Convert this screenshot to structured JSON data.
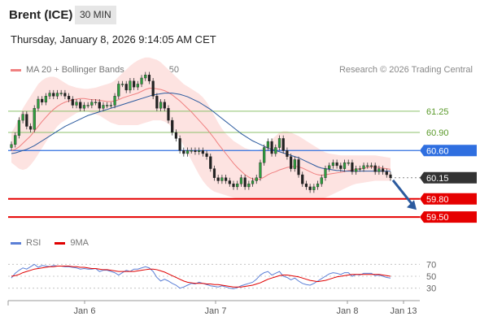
{
  "header": {
    "instrument": "Brent (ICE)",
    "timeframe": "30 MIN",
    "datetime": "Thursday, January 8, 2026 9:14:05 AM CET"
  },
  "legend": {
    "bollinger_label": "MA 20 + Bollinger Bands",
    "bollinger_color": "#f08080",
    "ma50_label": "MA 50",
    "ma50_color": "#2b5a9e",
    "rsi_label": "RSI",
    "rsi_color": "#5b7fd6",
    "rsi9_label": "9MA",
    "rsi9_color": "#e00000"
  },
  "credit": "Research © 2026 Trading Central",
  "chart_data": {
    "type": "candlestick",
    "x_ticks": [
      "Jan 6",
      "Jan 7",
      "Jan 8",
      "Jan 13"
    ],
    "ylim": [
      59.3,
      61.8
    ],
    "levels": [
      {
        "label": "61.25",
        "value": 61.25,
        "kind": "resistance",
        "color": "#8dc26b"
      },
      {
        "label": "60.90",
        "value": 60.9,
        "kind": "resistance",
        "color": "#8dc26b"
      },
      {
        "label": "60.60",
        "value": 60.6,
        "kind": "pivot",
        "color": "#2f6fe0"
      },
      {
        "label": "60.15",
        "value": 60.15,
        "kind": "last",
        "color": "#333333"
      },
      {
        "label": "59.80",
        "value": 59.8,
        "kind": "support",
        "color": "#e60000"
      },
      {
        "label": "59.50",
        "value": 59.5,
        "kind": "support",
        "color": "#e60000"
      }
    ],
    "close": [
      60.7,
      60.85,
      61.1,
      61.2,
      61.0,
      60.95,
      61.3,
      61.45,
      61.4,
      61.5,
      61.55,
      61.5,
      61.55,
      61.55,
      61.5,
      61.45,
      61.35,
      61.4,
      61.3,
      61.35,
      61.35,
      61.4,
      61.4,
      61.3,
      61.35,
      61.35,
      61.35,
      61.5,
      61.7,
      61.7,
      61.6,
      61.75,
      61.65,
      61.7,
      61.8,
      61.85,
      61.75,
      61.5,
      61.3,
      61.4,
      61.3,
      61.1,
      60.9,
      60.8,
      60.6,
      60.55,
      60.6,
      60.6,
      60.58,
      60.6,
      60.55,
      60.5,
      60.3,
      60.15,
      60.1,
      60.15,
      60.1,
      60.05,
      60.0,
      60.05,
      60.15,
      60.0,
      60.05,
      60.1,
      60.15,
      60.4,
      60.65,
      60.75,
      60.55,
      60.65,
      60.8,
      60.6,
      60.5,
      60.3,
      60.45,
      60.2,
      60.05,
      60.0,
      59.95,
      60.0,
      60.05,
      60.15,
      60.3,
      60.35,
      60.4,
      60.35,
      60.3,
      60.4,
      60.4,
      60.25,
      60.3,
      60.3,
      60.35,
      60.35,
      60.35,
      60.25,
      60.3,
      60.25,
      60.2,
      60.15
    ],
    "open": [
      60.65,
      60.7,
      60.85,
      61.1,
      61.2,
      61.0,
      60.95,
      61.3,
      61.45,
      61.4,
      61.5,
      61.55,
      61.5,
      61.55,
      61.55,
      61.5,
      61.45,
      61.35,
      61.4,
      61.3,
      61.35,
      61.35,
      61.4,
      61.4,
      61.3,
      61.35,
      61.35,
      61.35,
      61.5,
      61.7,
      61.7,
      61.6,
      61.75,
      61.65,
      61.7,
      61.8,
      61.85,
      61.75,
      61.5,
      61.3,
      61.4,
      61.3,
      61.1,
      60.9,
      60.8,
      60.6,
      60.55,
      60.6,
      60.6,
      60.58,
      60.6,
      60.55,
      60.5,
      60.3,
      60.15,
      60.1,
      60.15,
      60.1,
      60.05,
      60.0,
      60.05,
      60.15,
      60.0,
      60.05,
      60.1,
      60.15,
      60.4,
      60.65,
      60.75,
      60.55,
      60.65,
      60.8,
      60.6,
      60.5,
      60.3,
      60.45,
      60.2,
      60.05,
      60.0,
      59.95,
      60.0,
      60.05,
      60.15,
      60.3,
      60.35,
      60.4,
      60.35,
      60.3,
      60.4,
      60.4,
      60.25,
      60.3,
      60.3,
      60.35,
      60.35,
      60.35,
      60.25,
      60.3,
      60.25,
      60.2
    ],
    "ma20": [
      60.6,
      60.62,
      60.66,
      60.72,
      60.78,
      60.84,
      60.92,
      61.0,
      61.08,
      61.15,
      61.22,
      61.28,
      61.33,
      61.37,
      61.4,
      61.42,
      61.44,
      61.45,
      61.46,
      61.46,
      61.45,
      61.44,
      61.44,
      61.43,
      61.42,
      61.41,
      61.41,
      61.42,
      61.44,
      61.47,
      61.49,
      61.51,
      61.53,
      61.55,
      61.58,
      61.61,
      61.63,
      61.63,
      61.62,
      61.61,
      61.59,
      61.56,
      61.52,
      61.47,
      61.42,
      61.36,
      61.3,
      61.24,
      61.17,
      61.1,
      61.03,
      60.96,
      60.88,
      60.8,
      60.71,
      60.63,
      60.55,
      60.47,
      60.39,
      60.32,
      60.26,
      60.2,
      60.16,
      60.13,
      60.12,
      60.13,
      60.16,
      60.2,
      60.23,
      60.25,
      60.28,
      60.3,
      60.32,
      60.33,
      60.34,
      60.33,
      60.31,
      60.28,
      60.25,
      60.22,
      60.2,
      60.19,
      60.2,
      60.21,
      60.22,
      60.23,
      60.24,
      60.25,
      60.27,
      60.28,
      60.29,
      60.3,
      60.31,
      60.32,
      60.33,
      60.33,
      60.32,
      60.31,
      60.3,
      60.29
    ],
    "bb_upper": [
      60.9,
      61.0,
      61.15,
      61.3,
      61.4,
      61.5,
      61.6,
      61.7,
      61.76,
      61.8,
      61.82,
      61.82,
      61.8,
      61.76,
      61.72,
      61.68,
      61.66,
      61.64,
      61.63,
      61.62,
      61.62,
      61.63,
      61.64,
      61.66,
      61.68,
      61.7,
      61.72,
      61.76,
      61.82,
      61.88,
      61.94,
      62.0,
      62.05,
      62.09,
      62.12,
      62.14,
      62.14,
      62.12,
      62.1,
      62.06,
      62.0,
      61.94,
      61.88,
      61.82,
      61.76,
      61.7,
      61.66,
      61.62,
      61.58,
      61.54,
      61.48,
      61.4,
      61.3,
      61.18,
      61.06,
      60.96,
      60.88,
      60.82,
      60.76,
      60.72,
      60.68,
      60.64,
      60.62,
      60.6,
      60.6,
      60.62,
      60.66,
      60.72,
      60.78,
      60.84,
      60.9,
      60.92,
      60.92,
      60.9,
      60.87,
      60.84,
      60.8,
      60.76,
      60.72,
      60.68,
      60.64,
      60.6,
      60.57,
      60.55,
      60.54,
      60.53,
      60.52,
      60.52,
      60.52,
      60.52,
      60.52,
      60.52,
      60.52,
      60.52,
      60.52,
      60.52,
      60.51,
      60.5,
      60.49,
      60.48
    ],
    "bb_lower": [
      60.4,
      60.35,
      60.3,
      60.28,
      60.3,
      60.36,
      60.44,
      60.54,
      60.64,
      60.74,
      60.84,
      60.92,
      61.0,
      61.06,
      61.1,
      61.14,
      61.18,
      61.22,
      61.24,
      61.25,
      61.24,
      61.22,
      61.2,
      61.18,
      61.14,
      61.1,
      61.06,
      61.04,
      61.02,
      61.02,
      61.02,
      61.02,
      61.02,
      61.02,
      61.04,
      61.06,
      61.08,
      61.1,
      61.1,
      61.1,
      61.08,
      61.04,
      60.98,
      60.9,
      60.8,
      60.68,
      60.56,
      60.44,
      60.32,
      60.2,
      60.1,
      60.02,
      59.96,
      59.92,
      59.9,
      59.88,
      59.86,
      59.84,
      59.82,
      59.8,
      59.8,
      59.8,
      59.8,
      59.8,
      59.8,
      59.8,
      59.8,
      59.8,
      59.8,
      59.8,
      59.8,
      59.8,
      59.8,
      59.8,
      59.8,
      59.8,
      59.8,
      59.8,
      59.8,
      59.8,
      59.8,
      59.8,
      59.82,
      59.85,
      59.88,
      59.91,
      59.94,
      59.97,
      60.0,
      60.03,
      60.05,
      60.06,
      60.07,
      60.08,
      60.09,
      60.1,
      60.1,
      60.1,
      60.1,
      60.1
    ],
    "ma50": [
      60.55,
      60.56,
      60.58,
      60.6,
      60.62,
      60.65,
      60.68,
      60.72,
      60.76,
      60.8,
      60.84,
      60.88,
      60.92,
      60.96,
      61.0,
      61.03,
      61.06,
      61.09,
      61.12,
      61.15,
      61.18,
      61.2,
      61.22,
      61.24,
      61.26,
      61.28,
      61.3,
      61.32,
      61.34,
      61.36,
      61.38,
      61.4,
      61.42,
      61.44,
      61.46,
      61.48,
      61.5,
      61.52,
      61.53,
      61.54,
      61.55,
      61.55,
      61.55,
      61.54,
      61.53,
      61.51,
      61.49,
      61.46,
      61.43,
      61.4,
      61.36,
      61.32,
      61.28,
      61.23,
      61.18,
      61.13,
      61.08,
      61.03,
      60.98,
      60.93,
      60.88,
      60.84,
      60.8,
      60.76,
      60.73,
      60.7,
      60.67,
      60.64,
      60.62,
      60.6,
      60.58,
      60.56,
      60.54,
      60.52,
      60.5,
      60.48,
      60.45,
      60.42,
      60.39,
      60.36,
      60.33,
      60.31,
      60.3,
      60.29,
      60.28,
      60.27,
      60.27,
      60.26,
      60.26,
      60.26,
      60.26,
      60.26,
      60.26,
      60.26,
      60.26,
      60.26,
      60.26,
      60.26,
      60.26,
      60.26
    ],
    "rsi_ticks": [
      70,
      50,
      30
    ],
    "rsi_ylim": [
      20,
      80
    ],
    "rsi": [
      47,
      55,
      60,
      64,
      62,
      66,
      70,
      65,
      68,
      67,
      66,
      68,
      67,
      67,
      66,
      66,
      65,
      64,
      62,
      63,
      62,
      62,
      63,
      58,
      60,
      60,
      58,
      56,
      52,
      56,
      60,
      58,
      62,
      62,
      64,
      66,
      64,
      58,
      48,
      42,
      45,
      42,
      38,
      35,
      30,
      32,
      35,
      38,
      37,
      40,
      38,
      36,
      34,
      33,
      32,
      34,
      32,
      30,
      29,
      31,
      34,
      36,
      38,
      40,
      45,
      52,
      56,
      58,
      52,
      55,
      58,
      50,
      48,
      44,
      47,
      42,
      38,
      36,
      35,
      38,
      42,
      46,
      50,
      54,
      56,
      55,
      53,
      56,
      56,
      50,
      53,
      52,
      55,
      55,
      55,
      51,
      52,
      50,
      48,
      47
    ],
    "rsi_ma": [
      50,
      51,
      53,
      56,
      58,
      60,
      62,
      63,
      64,
      65,
      66,
      66,
      67,
      67,
      67,
      67,
      66,
      66,
      65,
      65,
      64,
      63,
      63,
      62,
      61,
      61,
      60,
      59,
      58,
      58,
      58,
      58,
      58,
      59,
      60,
      61,
      62,
      62,
      61,
      59,
      57,
      54,
      51,
      48,
      45,
      42,
      40,
      39,
      38,
      38,
      38,
      37,
      37,
      36,
      36,
      35,
      34,
      33,
      32,
      32,
      32,
      33,
      34,
      35,
      37,
      39,
      42,
      45,
      47,
      49,
      51,
      52,
      52,
      51,
      50,
      49,
      47,
      45,
      43,
      42,
      41,
      42,
      43,
      45,
      47,
      49,
      50,
      51,
      52,
      53,
      53,
      53,
      53,
      53,
      53,
      53,
      53,
      52,
      51,
      50
    ]
  }
}
